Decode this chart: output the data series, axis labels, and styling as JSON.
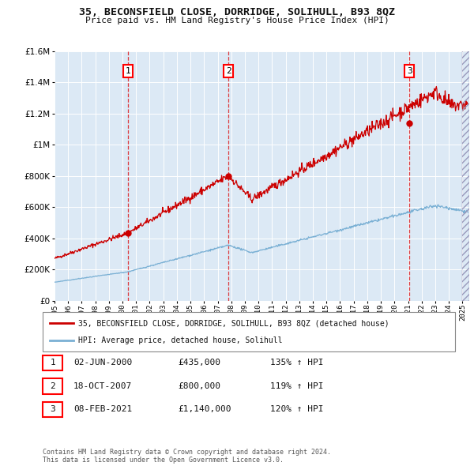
{
  "title1": "35, BECONSFIELD CLOSE, DORRIDGE, SOLIHULL, B93 8QZ",
  "title2": "Price paid vs. HM Land Registry's House Price Index (HPI)",
  "background_color": "#dce9f5",
  "plot_bg": "#dce9f5",
  "red_line_color": "#cc0000",
  "blue_line_color": "#7ab0d4",
  "sale1_date": 2000.42,
  "sale1_price": 435000,
  "sale2_date": 2007.8,
  "sale2_price": 800000,
  "sale3_date": 2021.1,
  "sale3_price": 1140000,
  "legend_red": "35, BECONSFIELD CLOSE, DORRIDGE, SOLIHULL, B93 8QZ (detached house)",
  "legend_blue": "HPI: Average price, detached house, Solihull",
  "table_data": [
    [
      "1",
      "02-JUN-2000",
      "£435,000",
      "135% ↑ HPI"
    ],
    [
      "2",
      "18-OCT-2007",
      "£800,000",
      "119% ↑ HPI"
    ],
    [
      "3",
      "08-FEB-2021",
      "£1,140,000",
      "120% ↑ HPI"
    ]
  ],
  "footnote": "Contains HM Land Registry data © Crown copyright and database right 2024.\nThis data is licensed under the Open Government Licence v3.0.",
  "ylim": [
    0,
    1600000
  ],
  "xmin": 1995.0,
  "xmax": 2025.5,
  "yticks": [
    0,
    200000,
    400000,
    600000,
    800000,
    1000000,
    1200000,
    1400000,
    1600000
  ],
  "xticks": [
    1995,
    1996,
    1997,
    1998,
    1999,
    2000,
    2001,
    2002,
    2003,
    2004,
    2005,
    2006,
    2007,
    2008,
    2009,
    2010,
    2011,
    2012,
    2013,
    2014,
    2015,
    2016,
    2017,
    2018,
    2019,
    2020,
    2021,
    2022,
    2023,
    2024,
    2025
  ]
}
